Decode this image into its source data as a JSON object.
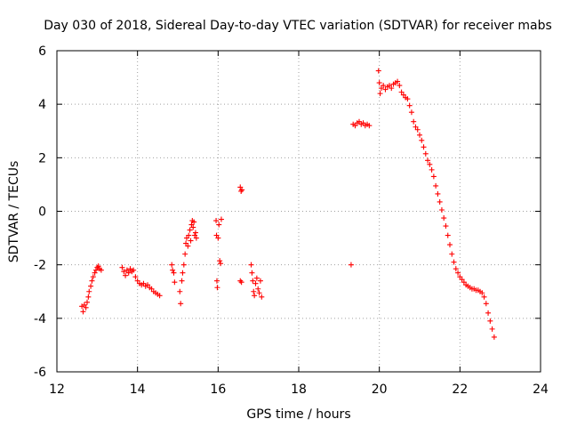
{
  "chart_data": {
    "type": "scatter",
    "title": "Day 030 of 2018, Sidereal Day-to-day VTEC variation (SDTVAR) for receiver mabs",
    "xlabel": "GPS time / hours",
    "ylabel": "SDTVAR / TECUs",
    "xlim": [
      12,
      24
    ],
    "ylim": [
      -6,
      6
    ],
    "xticks": [
      12,
      14,
      16,
      18,
      20,
      22,
      24
    ],
    "yticks": [
      -6,
      -4,
      -2,
      0,
      2,
      4,
      6
    ],
    "xtick_labels": [
      "12",
      "14",
      "16",
      "18",
      "20",
      "22",
      "24"
    ],
    "ytick_labels": [
      "-6",
      "-4",
      "-2",
      "0",
      "2",
      "4",
      "6"
    ],
    "grid": true,
    "marker": "+",
    "color": "#ff0000",
    "series": [
      {
        "name": "SDTVAR",
        "points": [
          [
            12.62,
            -3.55
          ],
          [
            12.65,
            -3.75
          ],
          [
            12.68,
            -3.5
          ],
          [
            12.72,
            -3.6
          ],
          [
            12.75,
            -3.4
          ],
          [
            12.78,
            -3.2
          ],
          [
            12.8,
            -3.0
          ],
          [
            12.84,
            -2.8
          ],
          [
            12.87,
            -2.6
          ],
          [
            12.9,
            -2.45
          ],
          [
            12.94,
            -2.3
          ],
          [
            12.97,
            -2.2
          ],
          [
            13.0,
            -2.1
          ],
          [
            13.03,
            -2.05
          ],
          [
            13.06,
            -2.15
          ],
          [
            13.1,
            -2.2
          ],
          [
            13.62,
            -2.1
          ],
          [
            13.66,
            -2.25
          ],
          [
            13.7,
            -2.4
          ],
          [
            13.74,
            -2.2
          ],
          [
            13.78,
            -2.3
          ],
          [
            13.82,
            -2.15
          ],
          [
            13.86,
            -2.25
          ],
          [
            13.9,
            -2.2
          ],
          [
            13.95,
            -2.45
          ],
          [
            14.0,
            -2.6
          ],
          [
            14.05,
            -2.7
          ],
          [
            14.1,
            -2.75
          ],
          [
            14.15,
            -2.7
          ],
          [
            14.2,
            -2.8
          ],
          [
            14.25,
            -2.75
          ],
          [
            14.3,
            -2.85
          ],
          [
            14.35,
            -2.9
          ],
          [
            14.4,
            -3.0
          ],
          [
            14.45,
            -3.05
          ],
          [
            14.5,
            -3.1
          ],
          [
            14.55,
            -3.15
          ],
          [
            14.85,
            -2.0
          ],
          [
            14.87,
            -2.2
          ],
          [
            14.9,
            -2.3
          ],
          [
            14.92,
            -2.65
          ],
          [
            15.05,
            -3.0
          ],
          [
            15.07,
            -3.45
          ],
          [
            15.1,
            -2.6
          ],
          [
            15.12,
            -2.3
          ],
          [
            15.15,
            -2.0
          ],
          [
            15.18,
            -1.6
          ],
          [
            15.2,
            -1.2
          ],
          [
            15.22,
            -1.0
          ],
          [
            15.25,
            -1.3
          ],
          [
            15.27,
            -0.9
          ],
          [
            15.3,
            -0.7
          ],
          [
            15.32,
            -1.1
          ],
          [
            15.34,
            -0.5
          ],
          [
            15.36,
            -0.35
          ],
          [
            15.38,
            -0.6
          ],
          [
            15.4,
            -0.4
          ],
          [
            15.42,
            -0.9
          ],
          [
            15.44,
            -0.8
          ],
          [
            15.46,
            -1.0
          ],
          [
            15.95,
            -0.35
          ],
          [
            15.96,
            -0.9
          ],
          [
            15.97,
            -2.6
          ],
          [
            15.98,
            -2.85
          ],
          [
            16.0,
            -1.0
          ],
          [
            16.02,
            -0.5
          ],
          [
            16.04,
            -1.85
          ],
          [
            16.06,
            -1.95
          ],
          [
            16.08,
            -0.3
          ],
          [
            16.55,
            0.9
          ],
          [
            16.57,
            0.75
          ],
          [
            16.59,
            0.8
          ],
          [
            16.55,
            -2.6
          ],
          [
            16.58,
            -2.65
          ],
          [
            16.82,
            -2.0
          ],
          [
            16.84,
            -2.3
          ],
          [
            16.86,
            -2.6
          ],
          [
            16.88,
            -3.0
          ],
          [
            16.9,
            -3.15
          ],
          [
            16.93,
            -2.7
          ],
          [
            16.96,
            -2.5
          ],
          [
            16.99,
            -2.9
          ],
          [
            17.02,
            -3.05
          ],
          [
            17.05,
            -2.6
          ],
          [
            17.08,
            -3.2
          ],
          [
            19.3,
            -2.0
          ],
          [
            19.35,
            3.25
          ],
          [
            19.4,
            3.2
          ],
          [
            19.45,
            3.3
          ],
          [
            19.5,
            3.35
          ],
          [
            19.55,
            3.25
          ],
          [
            19.6,
            3.3
          ],
          [
            19.65,
            3.2
          ],
          [
            19.7,
            3.25
          ],
          [
            19.75,
            3.2
          ],
          [
            19.98,
            5.25
          ],
          [
            20.0,
            4.8
          ],
          [
            20.02,
            4.4
          ],
          [
            20.05,
            4.6
          ],
          [
            20.1,
            4.7
          ],
          [
            20.15,
            4.55
          ],
          [
            20.2,
            4.65
          ],
          [
            20.25,
            4.7
          ],
          [
            20.3,
            4.6
          ],
          [
            20.35,
            4.75
          ],
          [
            20.4,
            4.8
          ],
          [
            20.45,
            4.85
          ],
          [
            20.5,
            4.7
          ],
          [
            20.55,
            4.45
          ],
          [
            20.6,
            4.35
          ],
          [
            20.65,
            4.25
          ],
          [
            20.7,
            4.2
          ],
          [
            20.75,
            3.95
          ],
          [
            20.8,
            3.7
          ],
          [
            20.85,
            3.35
          ],
          [
            20.9,
            3.15
          ],
          [
            20.95,
            3.05
          ],
          [
            21.0,
            2.85
          ],
          [
            21.05,
            2.65
          ],
          [
            21.1,
            2.4
          ],
          [
            21.15,
            2.15
          ],
          [
            21.2,
            1.9
          ],
          [
            21.25,
            1.75
          ],
          [
            21.3,
            1.55
          ],
          [
            21.35,
            1.3
          ],
          [
            21.4,
            0.95
          ],
          [
            21.45,
            0.65
          ],
          [
            21.5,
            0.35
          ],
          [
            21.55,
            0.05
          ],
          [
            21.6,
            -0.25
          ],
          [
            21.65,
            -0.55
          ],
          [
            21.7,
            -0.9
          ],
          [
            21.75,
            -1.25
          ],
          [
            21.8,
            -1.6
          ],
          [
            21.85,
            -1.9
          ],
          [
            21.9,
            -2.15
          ],
          [
            21.95,
            -2.3
          ],
          [
            22.0,
            -2.45
          ],
          [
            22.05,
            -2.55
          ],
          [
            22.1,
            -2.65
          ],
          [
            22.15,
            -2.75
          ],
          [
            22.2,
            -2.8
          ],
          [
            22.25,
            -2.85
          ],
          [
            22.3,
            -2.9
          ],
          [
            22.35,
            -2.9
          ],
          [
            22.4,
            -2.95
          ],
          [
            22.45,
            -2.95
          ],
          [
            22.5,
            -3.0
          ],
          [
            22.55,
            -3.05
          ],
          [
            22.6,
            -3.2
          ],
          [
            22.65,
            -3.45
          ],
          [
            22.7,
            -3.8
          ],
          [
            22.75,
            -4.1
          ],
          [
            22.8,
            -4.4
          ],
          [
            22.85,
            -4.7
          ]
        ]
      }
    ]
  }
}
